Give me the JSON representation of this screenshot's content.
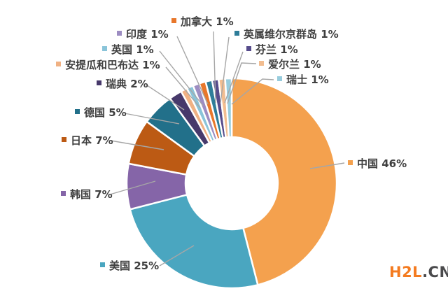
{
  "page": {
    "background": "#FFFFFF"
  },
  "watermark": {
    "text_primary": "H2L",
    "text_secondary": ".CN",
    "color_primary": "#F47B20",
    "color_secondary": "#4A4A4C"
  },
  "chart_data": {
    "type": "pie",
    "subtype": "donut",
    "title": "",
    "unit": "%",
    "start_angle_deg": 0,
    "direction": "clockwise",
    "inner_radius_ratio": 0.44,
    "legend_position": "callout-labels-around-chart",
    "label_text_color": "#3F3F3F",
    "leader_line_color": "#A6A6A6",
    "categories": [
      "中国",
      "美国",
      "韩国",
      "日本",
      "德国",
      "瑞典",
      "安提瓜和巴布达",
      "英国",
      "印度",
      "加拿大",
      "英属维尔京群岛",
      "芬兰",
      "爱尔兰",
      "瑞士"
    ],
    "values": [
      46,
      25,
      7,
      7,
      5,
      2,
      1,
      1,
      1,
      1,
      1,
      1,
      1,
      1
    ],
    "series": [
      {
        "key": "china",
        "name": "中国",
        "value": 46,
        "label": "中国 46%",
        "color": "#F4A14E"
      },
      {
        "key": "usa",
        "name": "美国",
        "value": 25,
        "label": "美国 25%",
        "color": "#4AA6C0"
      },
      {
        "key": "south-korea",
        "name": "韩国",
        "value": 7,
        "label": "韩国 7%",
        "color": "#8565A8"
      },
      {
        "key": "japan",
        "name": "日本",
        "value": 7,
        "label": "日本 7%",
        "color": "#BC5A14"
      },
      {
        "key": "germany",
        "name": "德国",
        "value": 5,
        "label": "德国 5%",
        "color": "#22708A"
      },
      {
        "key": "sweden",
        "name": "瑞典",
        "value": 2,
        "label": "瑞典 2%",
        "color": "#47396B"
      },
      {
        "key": "antigua-and-barbuda",
        "name": "安提瓜和巴布达",
        "value": 1,
        "label": "安提瓜和巴布达 1%",
        "color": "#F0B183"
      },
      {
        "key": "uk",
        "name": "英国",
        "value": 1,
        "label": "英国 1%",
        "color": "#8AC4D9"
      },
      {
        "key": "india",
        "name": "印度",
        "value": 1,
        "label": "印度 1%",
        "color": "#9D8DC2"
      },
      {
        "key": "canada",
        "name": "加拿大",
        "value": 1,
        "label": "加拿大 1%",
        "color": "#E8772B"
      },
      {
        "key": "british-virgin-islands",
        "name": "英属维尔京群岛",
        "value": 1,
        "label": "英属维尔京群岛 1%",
        "color": "#2E7D99"
      },
      {
        "key": "finland",
        "name": "芬兰",
        "value": 1,
        "label": "芬兰 1%",
        "color": "#564B8B"
      },
      {
        "key": "ireland",
        "name": "爱尔兰",
        "value": 1,
        "label": "爱尔兰 1%",
        "color": "#F2BD90"
      },
      {
        "key": "switzerland",
        "name": "瑞士",
        "value": 1,
        "label": "瑞士 1%",
        "color": "#97CCDD"
      }
    ]
  }
}
